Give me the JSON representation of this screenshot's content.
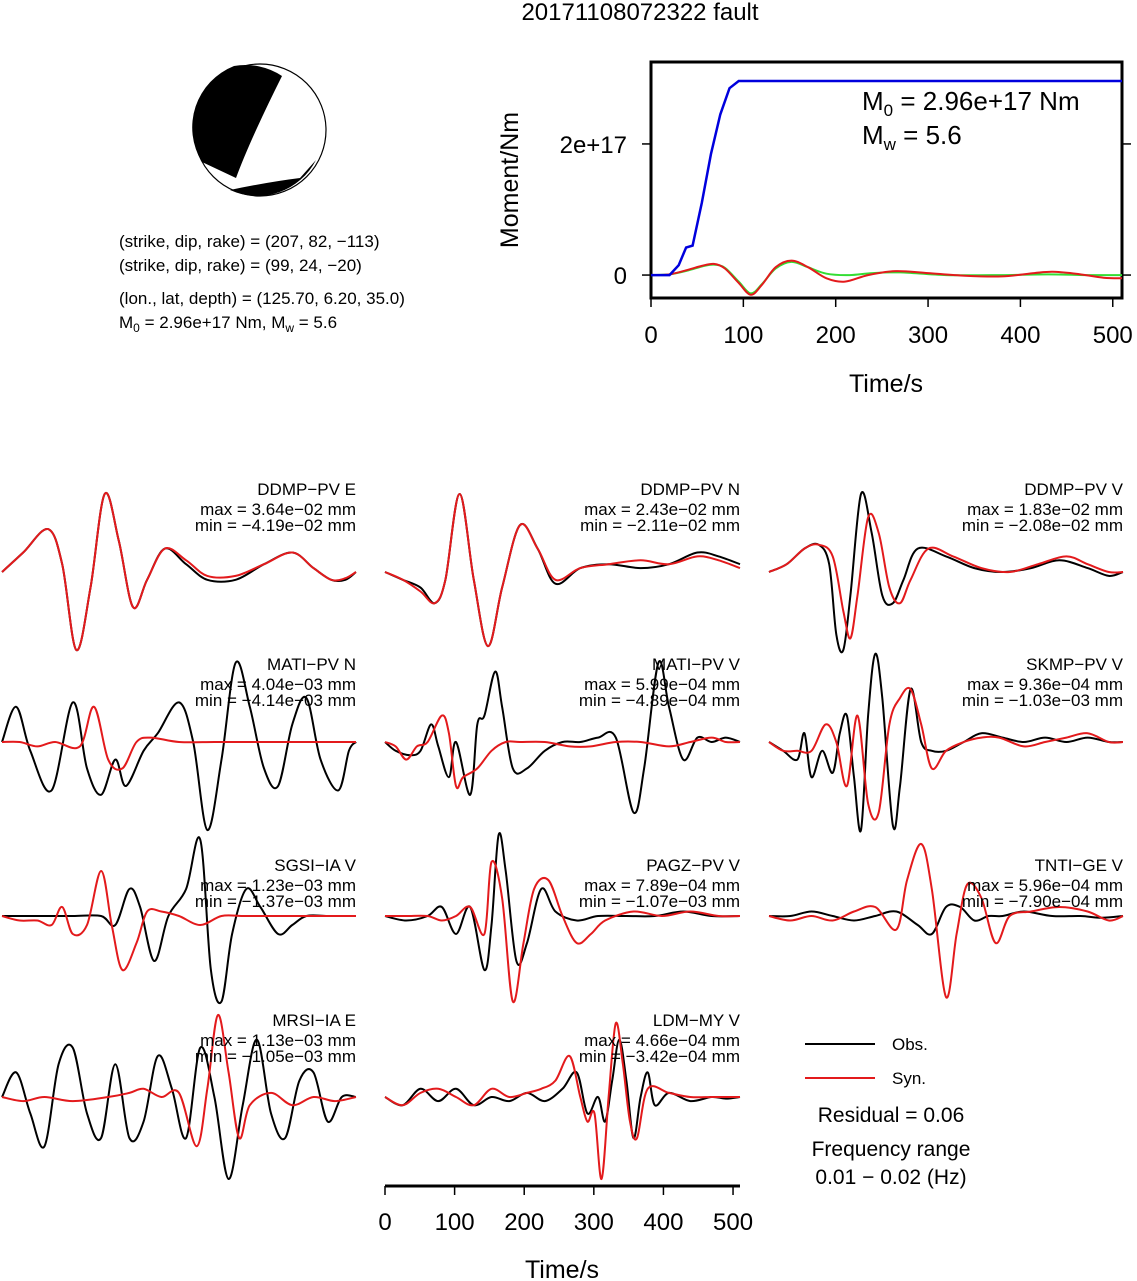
{
  "title": "20171108072322 fault",
  "colors": {
    "obs": "#000000",
    "syn": "#e31a1c",
    "moment_total": "#0000dd",
    "moment_rate_red": "#e31a1c",
    "moment_rate_green": "#33dd33",
    "beachball": "#000000"
  },
  "mechanism": {
    "line1": "(strike, dip, rake) = (207, 82, −113)",
    "line2": "(strike, dip, rake) = (99, 24, −20)",
    "line3": "(lon., lat, depth) = (125.70, 6.20, 35.0)",
    "line4_m0": "M",
    "line4_sub": "0",
    "line4_rest": " = 2.96e+17 Nm, M",
    "line4_sub2": "w",
    "line4_end": " = 5.6"
  },
  "moment_chart": {
    "type": "line",
    "ylabel": "Moment/Nm",
    "xlabel": "Time/s",
    "x_ticks": [
      "0",
      "100",
      "200",
      "300",
      "400",
      "500"
    ],
    "y_ticks": [
      "0",
      "2e+17"
    ],
    "xlim": [
      0,
      510
    ],
    "ylim": [
      -3.5e+16,
      3.25e+17
    ],
    "m0_label": "M",
    "m0_sub": "0",
    "m0_value": " = 2.96e+17 Nm",
    "mw_label": "M",
    "mw_sub": "w",
    "mw_value": " = 5.6",
    "cumulative": [
      [
        0,
        0
      ],
      [
        20,
        0
      ],
      [
        30,
        1.5e+16
      ],
      [
        38,
        4.2e+16
      ],
      [
        45,
        4.5e+16
      ],
      [
        55,
        1.1e+17
      ],
      [
        65,
        1.85e+17
      ],
      [
        75,
        2.45e+17
      ],
      [
        85,
        2.85e+17
      ],
      [
        95,
        2.96e+17
      ],
      [
        510,
        2.96e+17
      ]
    ],
    "rate_red": [
      [
        0,
        0
      ],
      [
        20,
        1000000000000000.0
      ],
      [
        40,
        8000000000000000.0
      ],
      [
        55,
        1.4e+16
      ],
      [
        68,
        1.7e+16
      ],
      [
        80,
        1e+16
      ],
      [
        95,
        -1.2e+16
      ],
      [
        108,
        -3e+16
      ],
      [
        120,
        -1.5e+16
      ],
      [
        135,
        1.2e+16
      ],
      [
        152,
        2.2e+16
      ],
      [
        170,
        1.2e+16
      ],
      [
        190,
        -5000000000000000.0
      ],
      [
        210,
        -1e+16
      ],
      [
        235,
        0.0
      ],
      [
        265,
        6000000000000000.0
      ],
      [
        300,
        3000000000000000.0
      ],
      [
        340,
        -1000000000000000.0
      ],
      [
        380,
        -2000000000000000.0
      ],
      [
        415,
        3000000000000000.0
      ],
      [
        435,
        5000000000000000.0
      ],
      [
        460,
        2000000000000000.0
      ],
      [
        490,
        -4000000000000000.0
      ],
      [
        510,
        -5000000000000000.0
      ]
    ],
    "rate_green": [
      [
        0,
        0
      ],
      [
        20,
        1000000000000000.0
      ],
      [
        40,
        7000000000000000.0
      ],
      [
        55,
        1.3e+16
      ],
      [
        68,
        1.6e+16
      ],
      [
        80,
        1.1e+16
      ],
      [
        95,
        -1e+16
      ],
      [
        108,
        -2.8e+16
      ],
      [
        120,
        -1.4e+16
      ],
      [
        135,
        1e+16
      ],
      [
        152,
        2e+16
      ],
      [
        170,
        1.2e+16
      ],
      [
        190,
        2000000000000000.0
      ],
      [
        215,
        0.0
      ],
      [
        240,
        3000000000000000.0
      ],
      [
        270,
        4000000000000000.0
      ],
      [
        320,
        0.0
      ],
      [
        380,
        0.0
      ],
      [
        430,
        1000000000000000.0
      ],
      [
        470,
        0.0
      ],
      [
        510,
        0.0
      ]
    ]
  },
  "waveforms": [
    {
      "station": "DDMP−PV E",
      "max": "max = 3.64e−02 mm",
      "min": "min = −4.19e−02 mm"
    },
    {
      "station": "DDMP−PV N",
      "max": "max = 2.43e−02 mm",
      "min": "min = −2.11e−02 mm"
    },
    {
      "station": "DDMP−PV V",
      "max": "max = 1.83e−02 mm",
      "min": "min = −2.08e−02 mm"
    },
    {
      "station": "MATI−PV N",
      "max": "max = 4.04e−03 mm",
      "min": "min = −4.14e−03 mm"
    },
    {
      "station": "MATI−PV V",
      "max": "max = 5.99e−04 mm",
      "min": "min = −4.89e−04 mm"
    },
    {
      "station": "SKMP−PV V",
      "max": "max = 9.36e−04 mm",
      "min": "min = −1.03e−03 mm"
    },
    {
      "station": "SGSI−IA V",
      "max": "max = 1.23e−03 mm",
      "min": "min = −1.37e−03 mm"
    },
    {
      "station": "PAGZ−PV V",
      "max": "max = 7.89e−04 mm",
      "min": "min = −1.07e−03 mm"
    },
    {
      "station": "TNTI−GE V",
      "max": "max = 5.96e−04 mm",
      "min": "min = −7.90e−04 mm"
    },
    {
      "station": "MRSI−IA E",
      "max": "max = 1.13e−03 mm",
      "min": "min = −1.05e−03 mm"
    },
    {
      "station": "LDM−MY V",
      "max": "max = 4.66e−04 mm",
      "min": "min = −3.42e−04 mm"
    }
  ],
  "bottom_axis": {
    "xlabel": "Time/s",
    "ticks": [
      "0",
      "100",
      "200",
      "300",
      "400",
      "500"
    ],
    "xlim": [
      0,
      510
    ]
  },
  "legend": {
    "obs": "Obs.",
    "syn": "Syn."
  },
  "residual": "Residual = 0.06",
  "freq_label": "Frequency range",
  "freq_value": "0.01 − 0.02 (Hz)"
}
